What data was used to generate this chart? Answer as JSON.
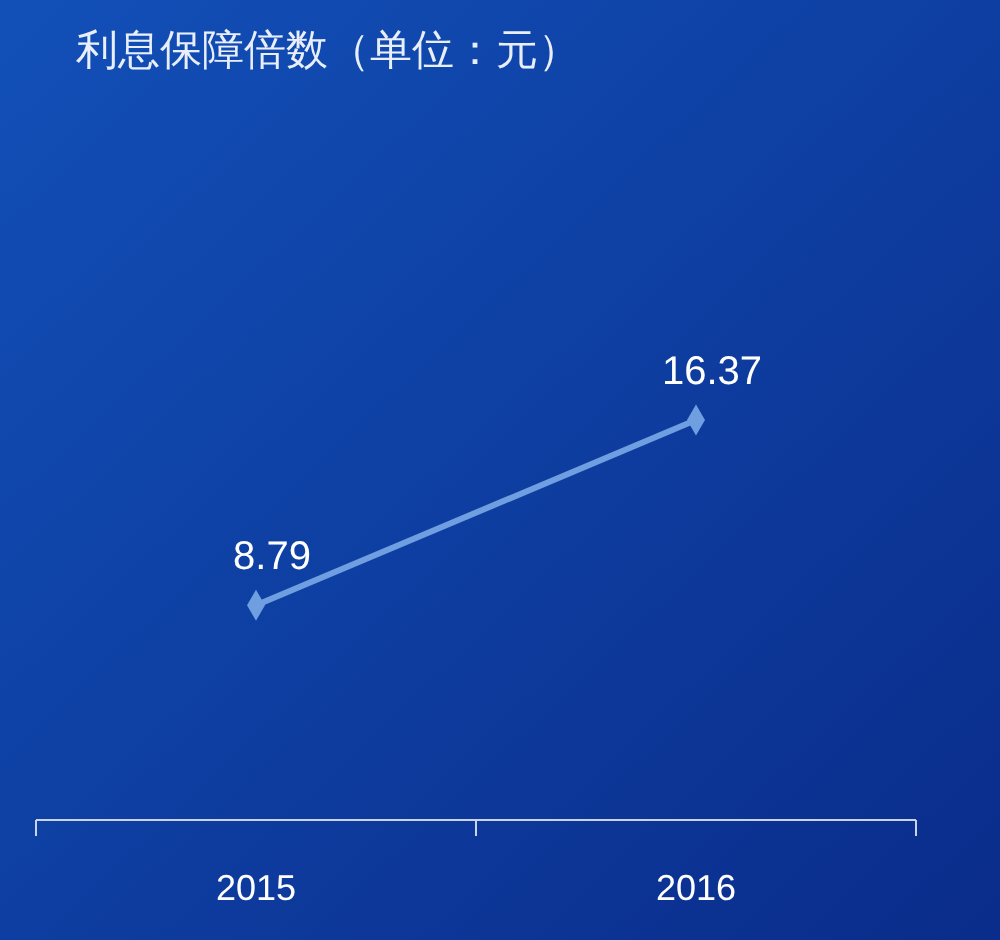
{
  "chart_data": {
    "type": "line",
    "title": "利息保障倍数（单位：元）",
    "categories": [
      "2015",
      "2016"
    ],
    "series": [
      {
        "color": "#6f9fe0",
        "values": [
          8.79,
          16.37
        ]
      }
    ],
    "tick_labels": "x",
    "data_labels": true,
    "marker": "diamond",
    "line_style": "solid"
  }
}
